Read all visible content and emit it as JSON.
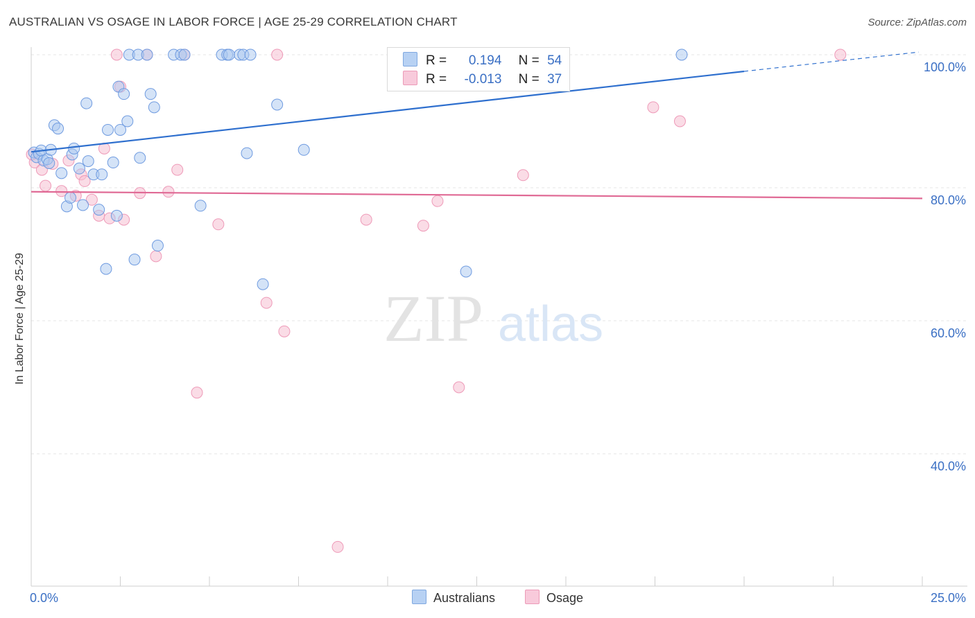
{
  "header": {
    "title": "AUSTRALIAN VS OSAGE IN LABOR FORCE | AGE 25-29 CORRELATION CHART",
    "source": "Source: ZipAtlas.com"
  },
  "colors": {
    "blue": "#2e6fce",
    "blue_fill": "#a9c8f0",
    "pink": "#e06a95",
    "pink_fill": "#f6bfd1",
    "axis_text": "#3a6fc4"
  },
  "watermark": {
    "zip": "ZIP",
    "atlas": "atlas"
  },
  "legend": {
    "rows": [
      {
        "r_label": "R =",
        "r_value": "0.194",
        "n_label": "N =",
        "n_value": "54"
      },
      {
        "r_label": "R =",
        "r_value": "-0.013",
        "n_label": "N =",
        "n_value": "37"
      }
    ]
  },
  "bottom_legend": {
    "australians": "Australians",
    "osage": "Osage"
  },
  "chart_data": {
    "type": "scatter",
    "title": "AUSTRALIAN VS OSAGE IN LABOR FORCE | AGE 25-29 CORRELATION CHART",
    "xlabel": "",
    "ylabel": "In Labor Force | Age 25-29",
    "xlim": [
      0,
      25
    ],
    "ylim": [
      22,
      102
    ],
    "x_tick_labels": [
      "0.0%",
      "25.0%"
    ],
    "y_ticks": [
      100,
      80,
      60,
      40
    ],
    "y_tick_labels": [
      "100.0%",
      "80.0%",
      "60.0%",
      "40.0%"
    ],
    "series": [
      {
        "name": "Australians",
        "R": 0.194,
        "N": 54,
        "trend": {
          "x0": 0,
          "y0": 85.4,
          "x1": 20,
          "y1": 97.5,
          "dash_to_x": 24.9,
          "dash_to_y": 100.4
        },
        "points": [
          [
            0.08,
            85.3
          ],
          [
            0.15,
            84.6
          ],
          [
            0.22,
            85.1
          ],
          [
            0.28,
            85.6
          ],
          [
            0.35,
            84.1
          ],
          [
            0.45,
            84.3
          ],
          [
            0.5,
            83.7
          ],
          [
            0.55,
            85.7
          ],
          [
            0.65,
            89.4
          ],
          [
            0.75,
            88.9
          ],
          [
            0.85,
            82.2
          ],
          [
            1.0,
            77.2
          ],
          [
            1.1,
            78.5
          ],
          [
            1.15,
            85.0
          ],
          [
            1.2,
            85.9
          ],
          [
            1.35,
            82.9
          ],
          [
            1.45,
            77.4
          ],
          [
            1.55,
            92.7
          ],
          [
            1.6,
            84.0
          ],
          [
            1.75,
            82.0
          ],
          [
            1.9,
            76.7
          ],
          [
            1.98,
            82.0
          ],
          [
            2.1,
            67.8
          ],
          [
            2.15,
            88.7
          ],
          [
            2.3,
            83.8
          ],
          [
            2.4,
            75.8
          ],
          [
            2.45,
            95.2
          ],
          [
            2.5,
            88.7
          ],
          [
            2.6,
            94.1
          ],
          [
            2.7,
            90.0
          ],
          [
            2.75,
            100.0
          ],
          [
            2.9,
            69.2
          ],
          [
            3.0,
            100.0
          ],
          [
            3.05,
            84.5
          ],
          [
            3.25,
            100.0
          ],
          [
            3.35,
            94.1
          ],
          [
            3.45,
            92.1
          ],
          [
            3.55,
            71.3
          ],
          [
            4.0,
            100.0
          ],
          [
            4.2,
            100.0
          ],
          [
            4.3,
            100.0
          ],
          [
            4.75,
            77.3
          ],
          [
            5.35,
            100.0
          ],
          [
            5.5,
            100.0
          ],
          [
            5.55,
            100.0
          ],
          [
            5.85,
            100.0
          ],
          [
            5.95,
            100.0
          ],
          [
            6.15,
            100.0
          ],
          [
            6.05,
            85.2
          ],
          [
            6.5,
            65.5
          ],
          [
            6.9,
            92.5
          ],
          [
            7.65,
            85.7
          ],
          [
            12.2,
            67.4
          ],
          [
            18.25,
            100.0
          ]
        ]
      },
      {
        "name": "Osage",
        "R": -0.013,
        "N": 37,
        "trend": {
          "x0": 0,
          "y0": 79.4,
          "x1": 25,
          "y1": 78.4
        },
        "points": [
          [
            0.1,
            83.8
          ],
          [
            0.3,
            82.7
          ],
          [
            0.4,
            80.3
          ],
          [
            0.6,
            83.6
          ],
          [
            0.85,
            79.5
          ],
          [
            1.05,
            84.1
          ],
          [
            1.25,
            78.8
          ],
          [
            1.4,
            82.0
          ],
          [
            1.5,
            81.0
          ],
          [
            1.7,
            78.2
          ],
          [
            1.9,
            75.8
          ],
          [
            2.05,
            85.9
          ],
          [
            2.2,
            75.4
          ],
          [
            2.4,
            100.0
          ],
          [
            2.5,
            95.2
          ],
          [
            2.6,
            75.2
          ],
          [
            3.05,
            79.2
          ],
          [
            3.25,
            100.0
          ],
          [
            3.5,
            69.7
          ],
          [
            3.85,
            79.4
          ],
          [
            4.1,
            82.7
          ],
          [
            4.3,
            100.0
          ],
          [
            4.65,
            49.2
          ],
          [
            5.25,
            74.5
          ],
          [
            6.6,
            62.7
          ],
          [
            6.9,
            100.0
          ],
          [
            7.1,
            58.4
          ],
          [
            8.6,
            26.0
          ],
          [
            9.4,
            75.2
          ],
          [
            11.0,
            74.3
          ],
          [
            11.4,
            78.0
          ],
          [
            12.0,
            50.0
          ],
          [
            13.8,
            81.9
          ],
          [
            17.45,
            92.1
          ],
          [
            18.2,
            90.0
          ],
          [
            22.7,
            100.0
          ],
          [
            0.02,
            85.0
          ]
        ]
      }
    ]
  }
}
